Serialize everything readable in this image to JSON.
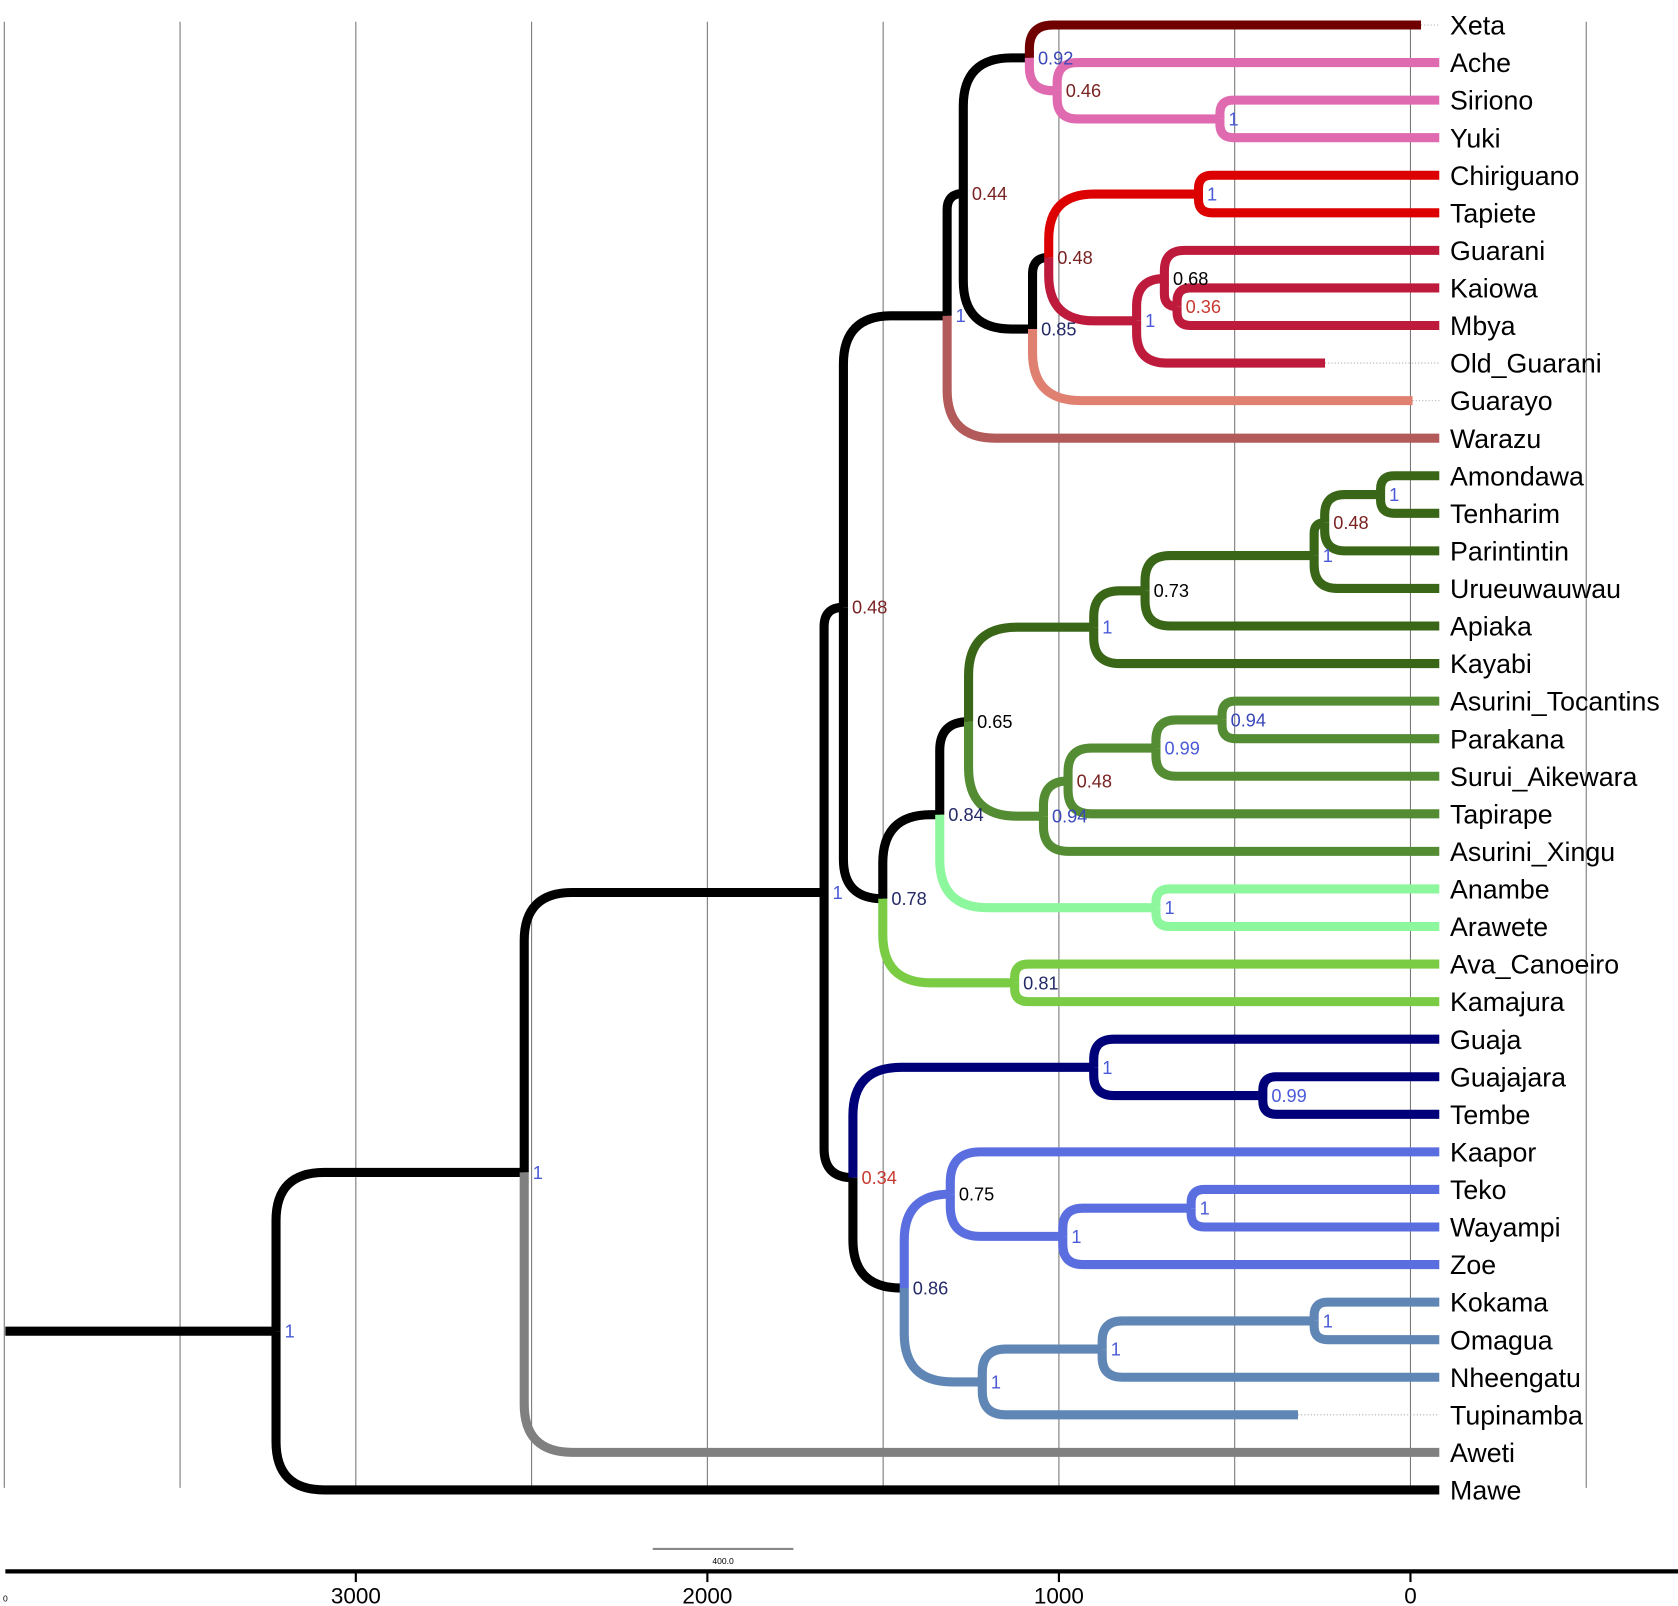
{
  "chart_data": {
    "type": "tree",
    "axis": {
      "unit_direction": "age decreasing to the right",
      "ticks": [
        3000,
        2000,
        1000,
        0
      ],
      "left_label": "0",
      "grid_interval": 500,
      "range": [
        4000,
        -500
      ]
    },
    "scale_bar": {
      "length": 400,
      "label": "400.0"
    },
    "default_tip_age": -82,
    "support_colors": {
      "high": "#4a5ad8",
      "mid_high": "#3a48b8",
      "mid": "#232a66",
      "moderate": "#000000",
      "low": "#7a2222",
      "very_low": "#c83a30"
    },
    "tree": {
      "age": 3227,
      "support": "1",
      "children": [
        {
          "age": 2521,
          "support": "1",
          "children": [
            {
              "age": 1668,
              "support": "1",
              "children": [
                {
                  "age": 1613,
                  "support": "0.48",
                  "children": [
                    {
                      "age": 1318,
                      "support": "1",
                      "children": [
                        {
                          "age": 1272,
                          "support": "0.44",
                          "children": [
                            {
                              "age": 1084,
                              "support": "0.92",
                              "children": [
                                {
                                  "name": "Xeta",
                                  "age": -30,
                                  "color": "#700000"
                                },
                                {
                                  "age": 1005,
                                  "support": "0.46",
                                  "color": "#e06ab0",
                                  "children": [
                                    {
                                      "name": "Ache"
                                    },
                                    {
                                      "age": 542,
                                      "support": "1",
                                      "children": [
                                        {
                                          "name": "Siriono"
                                        },
                                        {
                                          "name": "Yuki"
                                        }
                                      ]
                                    }
                                  ]
                                }
                              ]
                            },
                            {
                              "age": 1075,
                              "support": "0.85",
                              "children": [
                                {
                                  "age": 1029,
                                  "support": "0.48",
                                  "children": [
                                    {
                                      "age": 603,
                                      "support": "1",
                                      "color": "#dd0000",
                                      "children": [
                                        {
                                          "name": "Chiriguano"
                                        },
                                        {
                                          "name": "Tapiete"
                                        }
                                      ]
                                    },
                                    {
                                      "age": 779,
                                      "support": "1",
                                      "color": "#be1a3c",
                                      "children": [
                                        {
                                          "age": 700,
                                          "support": "0.68",
                                          "children": [
                                            {
                                              "name": "Guarani"
                                            },
                                            {
                                              "age": 664,
                                              "support": "0.36",
                                              "children": [
                                                {
                                                  "name": "Kaiowa"
                                                },
                                                {
                                                  "name": "Mbya"
                                                }
                                              ]
                                            }
                                          ]
                                        },
                                        {
                                          "name": "Old_Guarani",
                                          "age": 243
                                        }
                                      ]
                                    }
                                  ]
                                },
                                {
                                  "name": "Guarayo",
                                  "age": -6,
                                  "color": "#e08070"
                                }
                              ]
                            }
                          ]
                        },
                        {
                          "name": "Warazu",
                          "color": "#b35a5a"
                        }
                      ]
                    },
                    {
                      "age": 1501,
                      "support": "0.78",
                      "children": [
                        {
                          "age": 1339,
                          "support": "0.84",
                          "children": [
                            {
                              "age": 1257,
                              "support": "0.65",
                              "children": [
                                {
                                  "age": 901,
                                  "support": "1",
                                  "color": "#3a6618",
                                  "children": [
                                    {
                                      "age": 755,
                                      "support": "0.73",
                                      "children": [
                                        {
                                          "age": 274,
                                          "support": "1",
                                          "children": [
                                            {
                                              "age": 244,
                                              "support": "0.48",
                                              "children": [
                                                {
                                                  "age": 85,
                                                  "support": "1",
                                                  "children": [
                                                    {
                                                      "name": "Amondawa"
                                                    },
                                                    {
                                                      "name": "Tenharim"
                                                    }
                                                  ]
                                                },
                                                {
                                                  "name": "Parintintin"
                                                }
                                              ]
                                            },
                                            {
                                              "name": "Urueuwauwau"
                                            }
                                          ]
                                        },
                                        {
                                          "name": "Apiaka"
                                        }
                                      ]
                                    },
                                    {
                                      "name": "Kayabi"
                                    }
                                  ]
                                },
                                {
                                  "age": 1044,
                                  "support": "0.94",
                                  "color": "#548c34",
                                  "children": [
                                    {
                                      "age": 974,
                                      "support": "0.48",
                                      "children": [
                                        {
                                          "age": 724,
                                          "support": "0.99",
                                          "children": [
                                            {
                                              "age": 536,
                                              "support": "0.94",
                                              "children": [
                                                {
                                                  "name": "Asurini_Tocantins"
                                                },
                                                {
                                                  "name": "Parakana"
                                                }
                                              ]
                                            },
                                            {
                                              "name": "Surui_Aikewara"
                                            }
                                          ]
                                        },
                                        {
                                          "name": "Tapirape"
                                        }
                                      ]
                                    },
                                    {
                                      "name": "Asurini_Xingu"
                                    }
                                  ]
                                }
                              ]
                            },
                            {
                              "age": 724,
                              "support": "1",
                              "color": "#8cf79c",
                              "children": [
                                {
                                  "name": "Anambe"
                                },
                                {
                                  "name": "Arawete"
                                }
                              ]
                            }
                          ]
                        },
                        {
                          "age": 1126,
                          "support": "0.81",
                          "color": "#7acc44",
                          "children": [
                            {
                              "name": "Ava_Canoeiro"
                            },
                            {
                              "name": "Kamajura"
                            }
                          ]
                        }
                      ]
                    }
                  ]
                },
                {
                  "age": 1586,
                  "support": "0.34",
                  "children": [
                    {
                      "age": 901,
                      "support": "1",
                      "color": "#000078",
                      "children": [
                        {
                          "name": "Guaja"
                        },
                        {
                          "age": 420,
                          "support": "0.99",
                          "children": [
                            {
                              "name": "Guajajara"
                            },
                            {
                              "name": "Tembe"
                            }
                          ]
                        }
                      ]
                    },
                    {
                      "age": 1440,
                      "support": "0.86",
                      "children": [
                        {
                          "age": 1309,
                          "support": "0.75",
                          "color": "#5a6ee0",
                          "children": [
                            {
                              "name": "Kaapor"
                            },
                            {
                              "age": 989,
                              "support": "1",
                              "children": [
                                {
                                  "age": 624,
                                  "support": "1",
                                  "children": [
                                    {
                                      "name": "Teko"
                                    },
                                    {
                                      "name": "Wayampi"
                                    }
                                  ]
                                },
                                {
                                  "name": "Zoe"
                                }
                              ]
                            }
                          ]
                        },
                        {
                          "age": 1218,
                          "support": "1",
                          "color": "#5f86b5",
                          "children": [
                            {
                              "age": 877,
                              "support": "1",
                              "children": [
                                {
                                  "age": 274,
                                  "support": "1",
                                  "children": [
                                    {
                                      "name": "Kokama"
                                    },
                                    {
                                      "name": "Omagua"
                                    }
                                  ]
                                },
                                {
                                  "name": "Nheengatu"
                                }
                              ]
                            },
                            {
                              "name": "Tupinamba",
                              "age": 320
                            }
                          ]
                        }
                      ]
                    }
                  ]
                }
              ]
            },
            {
              "name": "Aweti",
              "color": "#808080"
            }
          ]
        },
        {
          "name": "Mawe"
        }
      ]
    }
  }
}
